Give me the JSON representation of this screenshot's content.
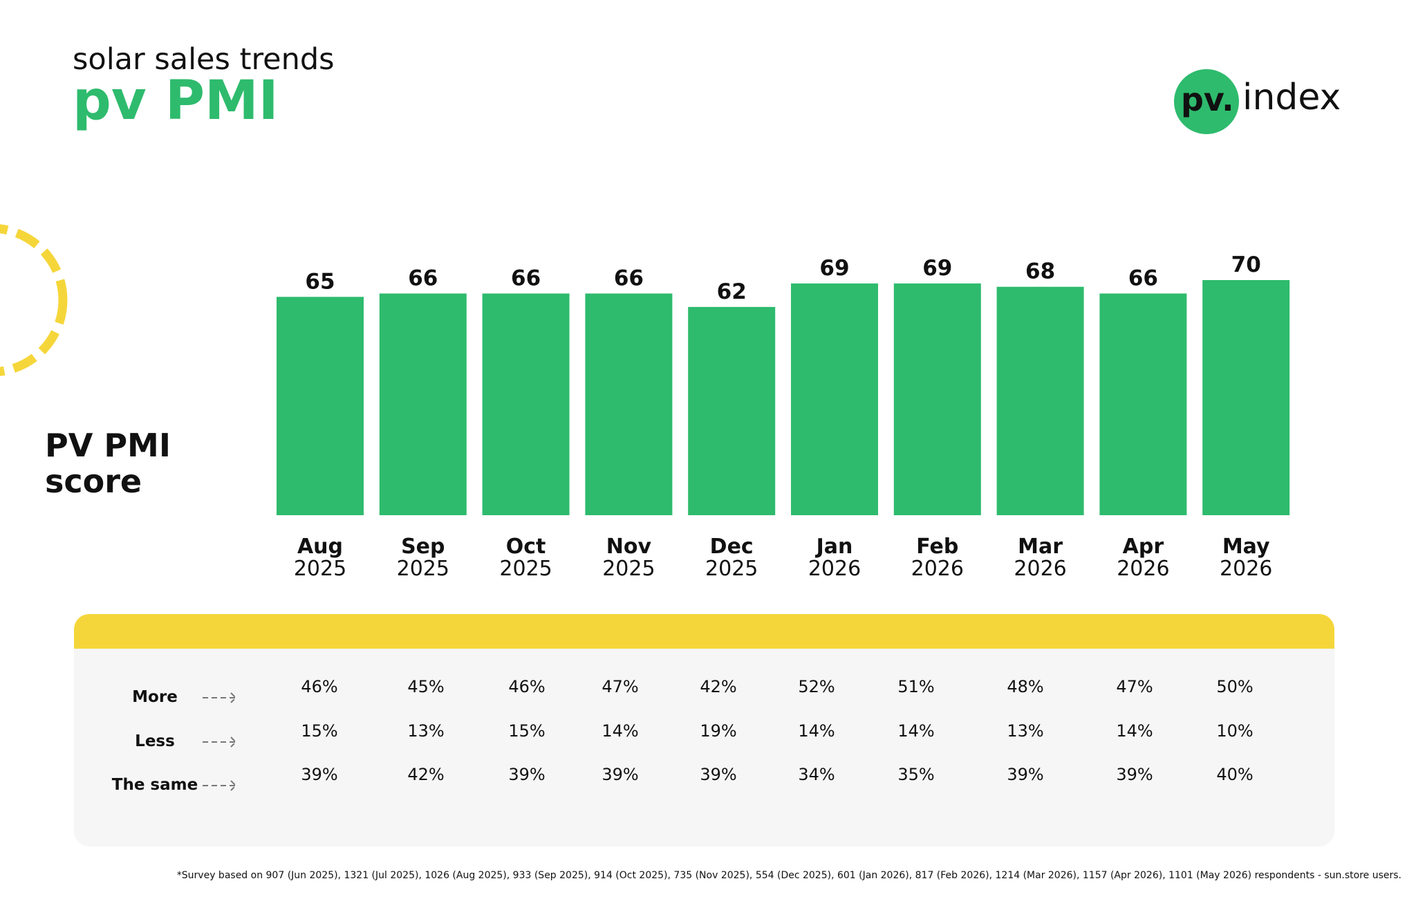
{
  "header": {
    "subtitle": "solar sales trends",
    "title": "pv PMI",
    "logo_mark": "pv.",
    "logo_text": "index"
  },
  "chart_data": {
    "type": "bar",
    "y_label": "PV PMI score",
    "categories": [
      "Aug",
      "Sep",
      "Oct",
      "Nov",
      "Dec",
      "Jan",
      "Feb",
      "Mar",
      "Apr",
      "May"
    ],
    "category_years": [
      "2025",
      "2025",
      "2025",
      "2025",
      "2025",
      "2026",
      "2026",
      "2026",
      "2026",
      "2026"
    ],
    "values": [
      65,
      66,
      66,
      66,
      62,
      69,
      69,
      68,
      66,
      70
    ],
    "color": "#2ebb6d"
  },
  "table": {
    "rows": [
      {
        "label": "More",
        "cells": [
          "46%",
          "45%",
          "46%",
          "47%",
          "42%",
          "52%",
          "51%",
          "48%",
          "47%",
          "50%"
        ]
      },
      {
        "label": "Less",
        "cells": [
          "15%",
          "13%",
          "15%",
          "14%",
          "19%",
          "14%",
          "14%",
          "13%",
          "14%",
          "10%"
        ]
      },
      {
        "label": "The same",
        "cells": [
          "39%",
          "42%",
          "39%",
          "39%",
          "39%",
          "34%",
          "35%",
          "39%",
          "39%",
          "40%"
        ]
      }
    ]
  },
  "footnote": "*Survey based on 907 (Jun 2025), 1321 (Jul 2025), 1026 (Aug 2025), 933 (Sep 2025), 914 (Oct 2025), 735 (Nov 2025), 554 (Dec 2025), 601 (Jan 2026), 817 (Feb 2026), 1214 (Mar 2026), 1157 (Apr 2026), 1101 (May 2026) respondents - sun.store users."
}
